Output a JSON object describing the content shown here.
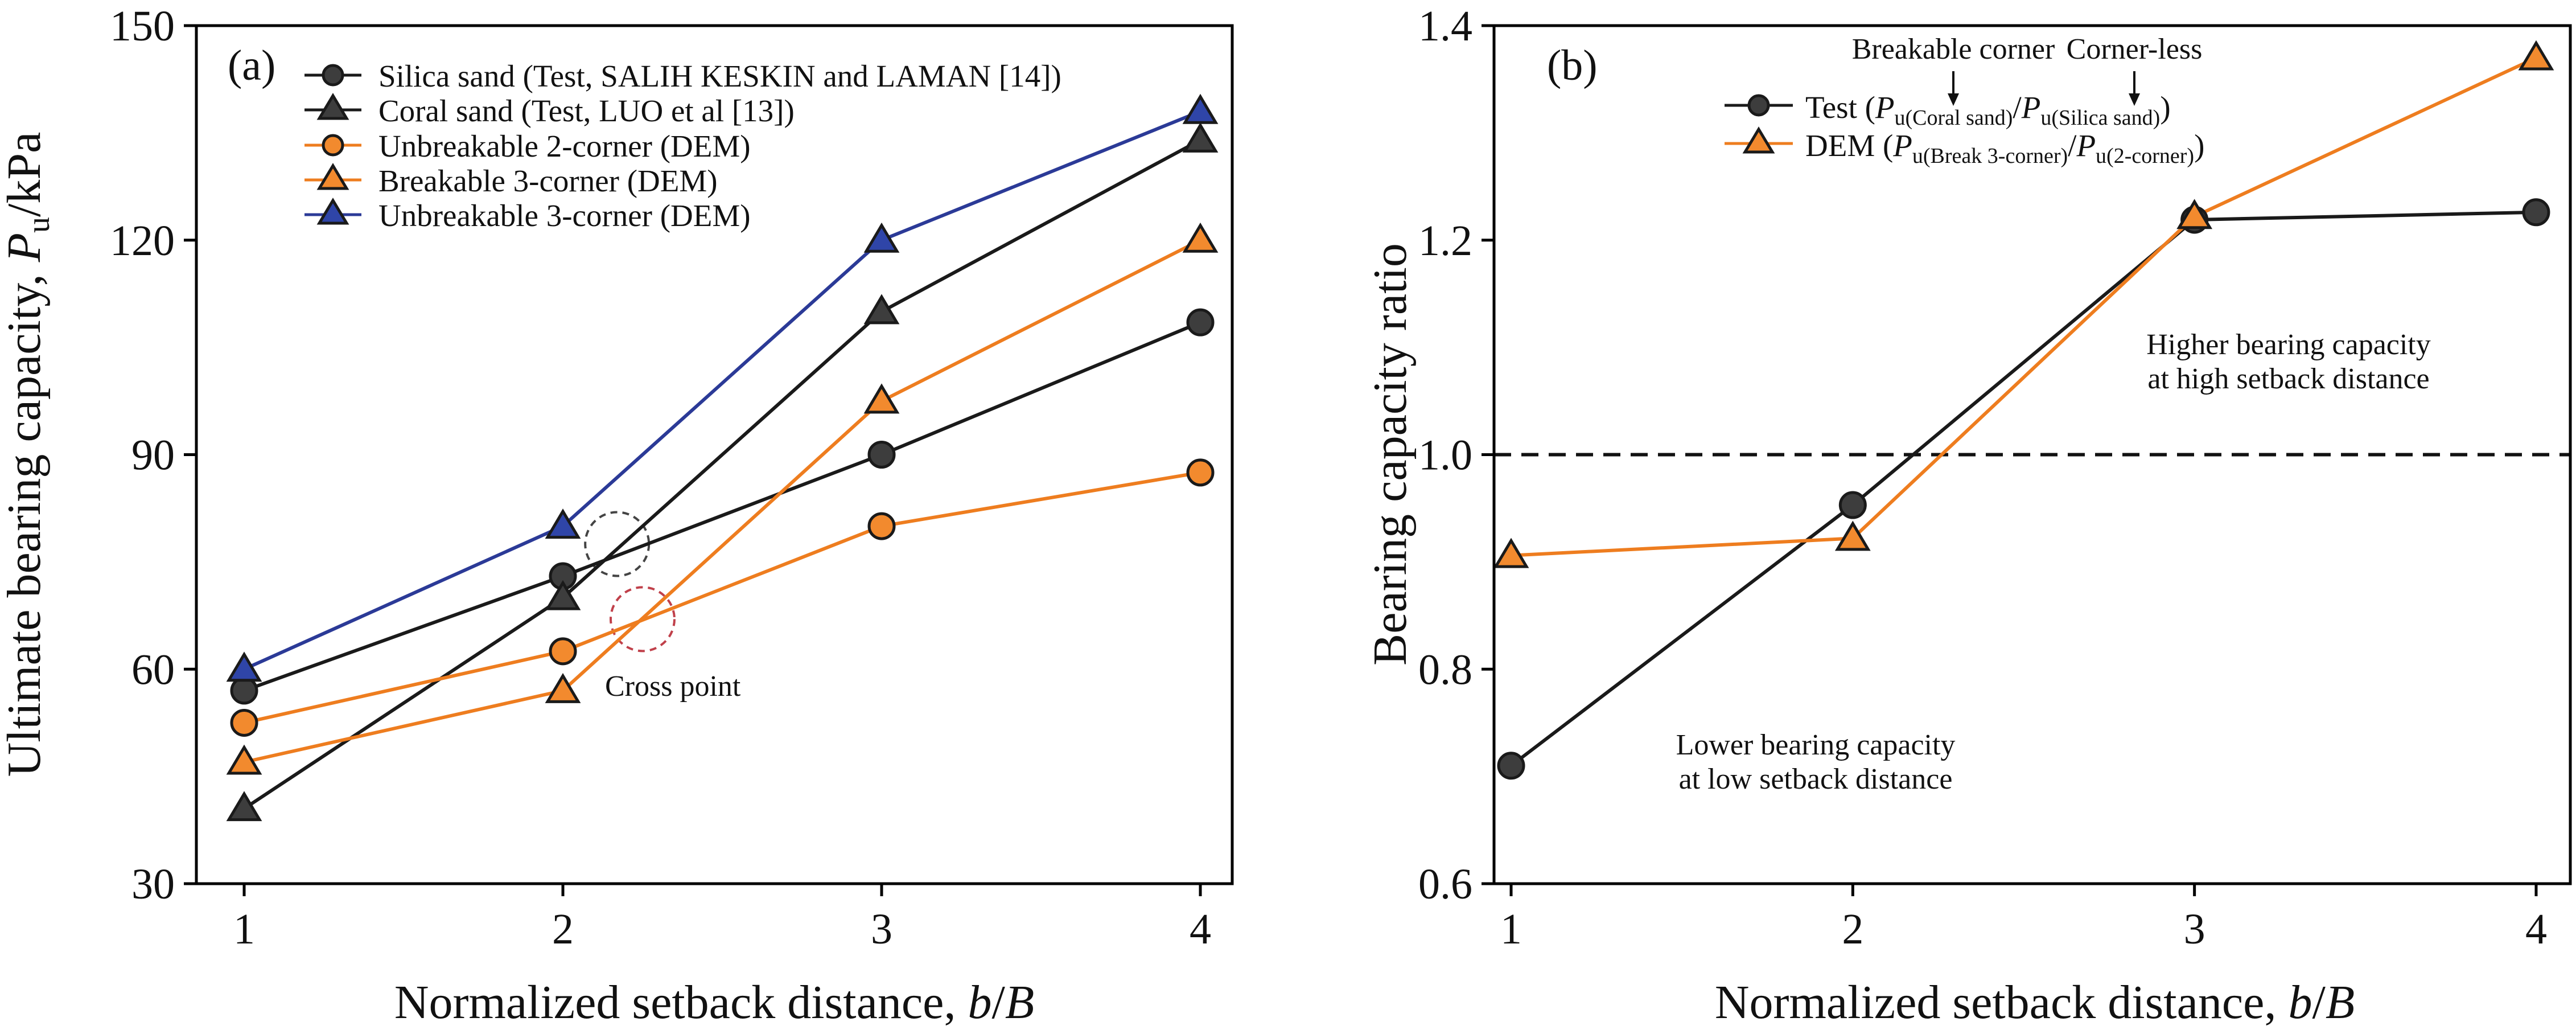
{
  "chart_data": [
    {
      "type": "line",
      "panel_label": "(a)",
      "xlabel": {
        "prefix": "Normalized setback distance, ",
        "var_b": "b",
        "slash": "/",
        "var_B": "B"
      },
      "ylabel": {
        "prefix": "Ultimate bearing capacity, ",
        "var": "P",
        "sub": "u",
        "suffix": "/kPa"
      },
      "x": [
        1,
        2,
        3,
        4
      ],
      "xlim": [
        0.85,
        4.1
      ],
      "ylim": [
        30,
        150
      ],
      "xticks": [
        "1",
        "2",
        "3",
        "4"
      ],
      "yticks": [
        30,
        60,
        90,
        120,
        150
      ],
      "ytick_labels": [
        "30",
        "60",
        "90",
        "120",
        "150"
      ],
      "series": [
        {
          "name": "Silica sand (Test, SALIH KESKIN and LAMAN [14])",
          "marker": "circle",
          "line_color": "#1a1a1a",
          "fill": "#3d3d3d",
          "values": [
            57,
            73,
            90,
            108.5
          ]
        },
        {
          "name": "Coral sand (Test, LUO et al [13])",
          "marker": "triangle",
          "line_color": "#1a1a1a",
          "fill": "#3d3d3d",
          "values": [
            40.5,
            70,
            110,
            134
          ]
        },
        {
          "name": "Unbreakable 2-corner (DEM)",
          "marker": "circle",
          "line_color": "#ee7d1f",
          "fill": "#f28a2e",
          "values": [
            52.5,
            62.5,
            80,
            87.5
          ]
        },
        {
          "name": "Breakable 3-corner (DEM)",
          "marker": "triangle",
          "line_color": "#ee7d1f",
          "fill": "#f28a2e",
          "values": [
            47,
            57,
            97.5,
            120
          ]
        },
        {
          "name": "Unbreakable 3-corner (DEM)",
          "marker": "triangle",
          "line_color": "#2b3a97",
          "fill": "#2f45a8",
          "values": [
            60,
            80,
            120,
            138
          ]
        }
      ],
      "annotations": [
        {
          "text": "Cross point",
          "x": 2.42,
          "y": 57
        }
      ],
      "highlights": [
        {
          "label": "silica-coral-cross",
          "x": 2.17,
          "y": 77.5,
          "color": "#444444"
        },
        {
          "label": "dem-cross",
          "x": 2.25,
          "y": 67,
          "color": "#c0404a"
        }
      ],
      "legend_position": "top-right"
    },
    {
      "type": "line",
      "panel_label": "(b)",
      "xlabel": {
        "prefix": "Normalized setback distance, ",
        "var_b": "b",
        "slash": "/",
        "var_B": "B"
      },
      "ylabel": {
        "text": "Bearing capacity ratio"
      },
      "x": [
        1,
        2,
        3,
        4
      ],
      "xlim": [
        0.95,
        4.1
      ],
      "ylim": [
        0.6,
        1.4
      ],
      "xticks": [
        "1",
        "2",
        "3",
        "4"
      ],
      "yticks": [
        0.6,
        0.8,
        1.0,
        1.2,
        1.4
      ],
      "ytick_labels": [
        "0.6",
        "0.8",
        "1.0",
        "1.2",
        "1.4"
      ],
      "reference_line": 1.0,
      "series": [
        {
          "name": "Test",
          "name_parts": [
            "Test (",
            "P",
            "u(Coral sand)",
            "/",
            "P",
            "u(Silica sand)",
            ")"
          ],
          "marker": "circle",
          "line_color": "#1a1a1a",
          "fill": "#3d3d3d",
          "values": [
            0.71,
            0.953,
            1.219,
            1.226
          ]
        },
        {
          "name": "DEM",
          "name_parts": [
            "DEM (",
            "P",
            "u(Break 3-corner)",
            "/",
            "P",
            "u(2-corner)",
            ")"
          ],
          "marker": "triangle",
          "line_color": "#ee7d1f",
          "fill": "#f28a2e",
          "values": [
            0.906,
            0.922,
            1.222,
            1.37
          ]
        }
      ],
      "annotations": [
        {
          "text": "Breakable corner",
          "x": 2.2,
          "y": 1.39,
          "arrow_to_y": 1.34
        },
        {
          "text": "Corner-less",
          "x": 3.75,
          "y": 1.39,
          "arrow_to_y": 1.34
        },
        {
          "text": "Higher bearing capacity",
          "x": 3.5,
          "y": 1.1
        },
        {
          "text": "at high setback distance",
          "x": 3.5,
          "y": 1.065
        },
        {
          "text": "Lower bearing capacity",
          "x": 1.55,
          "y": 0.74
        },
        {
          "text": "at low setback distance",
          "x": 1.55,
          "y": 0.705
        }
      ],
      "legend_position": "top-center"
    }
  ]
}
